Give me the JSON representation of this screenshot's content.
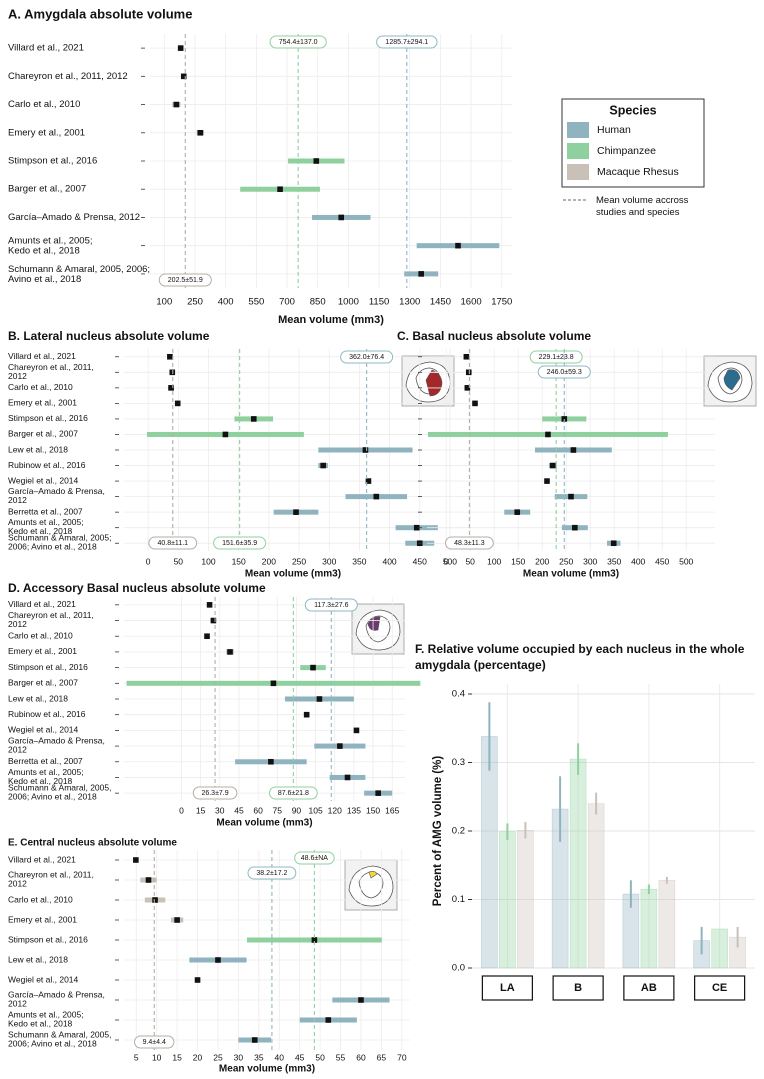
{
  "legend": {
    "title": "Species",
    "items": [
      {
        "name": "Human",
        "color": "#8fb3bf"
      },
      {
        "name": "Chimpanzee",
        "color": "#8fd19e"
      },
      {
        "name": "Macaque Rhesus",
        "color": "#c9c0b7"
      }
    ],
    "note": "Mean volume accross\nstudies and species"
  },
  "chart_data": [
    {
      "type": "forest",
      "title": "A. Amygdala absolute volume",
      "xlabel": "Mean volume (mm3)",
      "categories": [
        "Villard et al., 2021",
        "Chareyron et al., 2011, 2012",
        "Carlo et al., 2010",
        "Emery et al., 2001",
        "Stimpson et al., 2016",
        "Barger et al., 2007",
        "García–Amado & Prensa, 2012",
        "Amunts et al., 2005;\nKedo et al., 2018",
        "Schumann & Amaral, 2005, 2006;\nAvino et al., 2018"
      ],
      "values": [
        180,
        195,
        159,
        276,
        843,
        666,
        965,
        1536,
        1356
      ],
      "errors": [
        12,
        8,
        20,
        18,
        138,
        195,
        143,
        202,
        83
      ],
      "colors": [
        "#c9c0b7",
        "#c9c0b7",
        "#c9c0b7",
        "#c9c0b7",
        "#8fd19e",
        "#8fd19e",
        "#8fb3bf",
        "#8fb3bf",
        "#8fb3bf"
      ],
      "xlim": [
        30,
        1800
      ],
      "xticks": [
        100,
        250,
        400,
        550,
        700,
        850,
        1000,
        1150,
        1300,
        1450,
        1600,
        1750
      ],
      "mean_lines": [
        {
          "value": 754.4,
          "label": "754.4±137.0",
          "color": "#8fd19e",
          "position": "top"
        },
        {
          "value": 1285.7,
          "label": "1285.7±294.1",
          "color": "#8fb8c4",
          "position": "top"
        },
        {
          "value": 202.5,
          "label": "202.5±51.9",
          "color": "#b5ada5",
          "position": "bottom"
        }
      ],
      "grid": true
    },
    {
      "type": "forest",
      "title": "B. Lateral nucleus absolute volume",
      "xlabel": "Mean volume (mm3)",
      "categories": [
        "Villard et al., 2021",
        "Chareyron et al., 2011,\n2012",
        "Carlo et al., 2010",
        "Emery et al., 2001",
        "Stimpson et al., 2016",
        "Barger et al., 2007",
        "Lew et al., 2018",
        "Rubinow et al., 2016",
        "Wegiel et al., 2014",
        "García–Amado & Prensa,\n2012",
        "Berretta et al., 2007",
        "Amunts et al., 2005;\nKedo et al., 2018",
        "Schumann & Amaral, 2005;\n2006; Avino et al., 2018"
      ],
      "values": [
        36,
        40,
        38,
        49,
        175,
        128,
        360,
        290,
        365,
        378,
        245,
        445,
        450
      ],
      "errors": [
        3,
        3,
        5,
        3,
        32,
        130,
        78,
        8,
        4,
        51,
        37,
        35,
        24
      ],
      "colors": [
        "#c9c0b7",
        "#c9c0b7",
        "#c9c0b7",
        "#c9c0b7",
        "#8fd19e",
        "#8fd19e",
        "#8fb3bf",
        "#8fb3bf",
        "#8fb3bf",
        "#8fb3bf",
        "#8fb3bf",
        "#8fb3bf",
        "#8fb3bf"
      ],
      "xlim": [
        -40,
        520
      ],
      "xticks": [
        0,
        50,
        100,
        150,
        200,
        250,
        300,
        350,
        400,
        450,
        500
      ],
      "mean_lines": [
        {
          "value": 362.0,
          "label": "362.0±76.4",
          "color": "#8fb8c4",
          "position": "top"
        },
        {
          "value": 40.8,
          "label": "40.8±11.1",
          "color": "#b5ada5",
          "position": "bottom"
        },
        {
          "value": 151.6,
          "label": "151.6±35.9",
          "color": "#8fd19e",
          "position": "bottom"
        }
      ],
      "grid": true
    },
    {
      "type": "forest",
      "title": "C. Basal nucleus absolute volume",
      "xlabel": "Mean volume (mm3)",
      "values": [
        42,
        47,
        44,
        60,
        246,
        212,
        265,
        222,
        210,
        260,
        148,
        268,
        349
      ],
      "errors": [
        3,
        3,
        5,
        4,
        46,
        250,
        80,
        8,
        4,
        34,
        27,
        27,
        14
      ],
      "colors": [
        "#c9c0b7",
        "#c9c0b7",
        "#c9c0b7",
        "#c9c0b7",
        "#8fd19e",
        "#8fd19e",
        "#8fb3bf",
        "#8fb3bf",
        "#8fb3bf",
        "#8fb3bf",
        "#8fb3bf",
        "#8fb3bf",
        "#8fb3bf"
      ],
      "xlim": [
        -40,
        560
      ],
      "xticks": [
        0,
        50,
        100,
        150,
        200,
        250,
        300,
        350,
        400,
        450,
        500
      ],
      "mean_lines": [
        {
          "value": 229.1,
          "label": "229.1±23.8",
          "color": "#8fd19e",
          "position": "top"
        },
        {
          "value": 246.0,
          "label": "246.0±59.3",
          "color": "#8fb8c4",
          "position": "top"
        },
        {
          "value": 48.3,
          "label": "48.3±11.3",
          "color": "#b5ada5",
          "position": "bottom"
        }
      ],
      "grid": true
    },
    {
      "type": "forest",
      "title": "D. Accessory Basal nucleus absolute volume",
      "xlabel": "Mean volume (mm3)",
      "categories": [
        "Villard et al., 2021",
        "Chareyron et al., 2011,\n2012",
        "Carlo et al., 2010",
        "Emery et al., 2001",
        "Stimpson et al., 2016",
        "Barger et al., 2007",
        "Lew et al., 2018",
        "Rubinow et al., 2016",
        "Wegiel et al., 2014",
        "García–Amado & Prensa,\n2012",
        "Berretta et al., 2007",
        "Amunts et al., 2005;\nKedo et al., 2018",
        "Schumann & Amaral, 2005,\n2006; Avino et al., 2018"
      ],
      "values": [
        22,
        25,
        20,
        38,
        103,
        72,
        108,
        98,
        137,
        124,
        70,
        130,
        154
      ],
      "errors": [
        1,
        2,
        1.5,
        3,
        10,
        115,
        27,
        2,
        2,
        20,
        28,
        14,
        11
      ],
      "colors": [
        "#c9c0b7",
        "#c9c0b7",
        "#c9c0b7",
        "#c9c0b7",
        "#8fd19e",
        "#8fd19e",
        "#8fb3bf",
        "#8fb3bf",
        "#8fb3bf",
        "#8fb3bf",
        "#8fb3bf",
        "#8fb3bf",
        "#8fb3bf"
      ],
      "xlim": [
        -45,
        175
      ],
      "xticks": [
        0,
        15,
        30,
        45,
        60,
        75,
        90,
        105,
        120,
        135,
        150,
        165
      ],
      "mean_lines": [
        {
          "value": 117.3,
          "label": "117.3±27.6",
          "color": "#8fb8c4",
          "position": "top"
        },
        {
          "value": 26.3,
          "label": "26.3±7.9",
          "color": "#b5ada5",
          "position": "bottom"
        },
        {
          "value": 87.6,
          "label": "87.6±21.8",
          "color": "#8fd19e",
          "position": "bottom"
        }
      ],
      "grid": true
    },
    {
      "type": "forest",
      "title": "E. Central nucleus absolute volume",
      "xlabel": "Mean volume (mm3)",
      "categories": [
        "Villard et al., 2021",
        "Chareyron et al., 2011,\n2012",
        "Carlo et al., 2010",
        "Emery et al., 2001",
        "Stimpson et al., 2016",
        "Lew et al., 2018",
        "Wegiel et al., 2014",
        "García–Amado & Prensa,\n2012",
        "Amunts et al., 2005;\nKedo et al., 2018",
        "Schumann & Amaral, 2005,\n2006; Avino et al., 2018"
      ],
      "values": [
        4.9,
        8,
        9.6,
        15,
        48.6,
        25,
        20,
        60,
        52,
        34
      ],
      "errors": [
        0.2,
        2,
        2.5,
        1.5,
        16.5,
        7,
        0.3,
        7,
        7,
        4
      ],
      "colors": [
        "#c9c0b7",
        "#c9c0b7",
        "#c9c0b7",
        "#c9c0b7",
        "#8fd19e",
        "#8fb3bf",
        "#8fb3bf",
        "#8fb3bf",
        "#8fb3bf",
        "#8fb3bf"
      ],
      "xlim": [
        2,
        72
      ],
      "xticks": [
        5,
        10,
        15,
        20,
        25,
        30,
        35,
        40,
        45,
        50,
        55,
        60,
        65,
        70
      ],
      "mean_lines": [
        {
          "value": 48.6,
          "label": "48.6±NA",
          "color": "#8fd19e",
          "position": "top"
        },
        {
          "value": 38.2,
          "label": "38.2±17.2",
          "color": "#8fb8c4",
          "position": "top"
        },
        {
          "value": 9.4,
          "label": "9.4±4.4",
          "color": "#b5ada5",
          "position": "bottom"
        }
      ],
      "grid": true
    },
    {
      "type": "bar",
      "title": "F. Relative volume occupied by each nucleus in the whole\namygdala (percentage)",
      "ylabel": "Percent of AMG volume (%)",
      "categories": [
        "LA",
        "B",
        "AB",
        "CE"
      ],
      "series": [
        {
          "name": "Human",
          "color": "#8fb3bf",
          "values": [
            0.338,
            0.232,
            0.108,
            0.04
          ],
          "errors": [
            0.05,
            0.048,
            0.02,
            0.02
          ]
        },
        {
          "name": "Chimpanzee",
          "color": "#8fd19e",
          "values": [
            0.199,
            0.305,
            0.115,
            0.057
          ],
          "errors": [
            0.012,
            0.023,
            0.007,
            null
          ]
        },
        {
          "name": "Macaque Rhesus",
          "color": "#c9c0b7",
          "values": [
            0.201,
            0.24,
            0.128,
            0.045
          ],
          "errors": [
            0.012,
            0.016,
            0.005,
            0.015
          ]
        }
      ],
      "ylim": [
        0,
        0.4
      ],
      "yticks": [
        {
          "value": 0,
          "label": "0.0"
        },
        0.1,
        0.2,
        0.3,
        0.4
      ],
      "grid": true
    }
  ]
}
